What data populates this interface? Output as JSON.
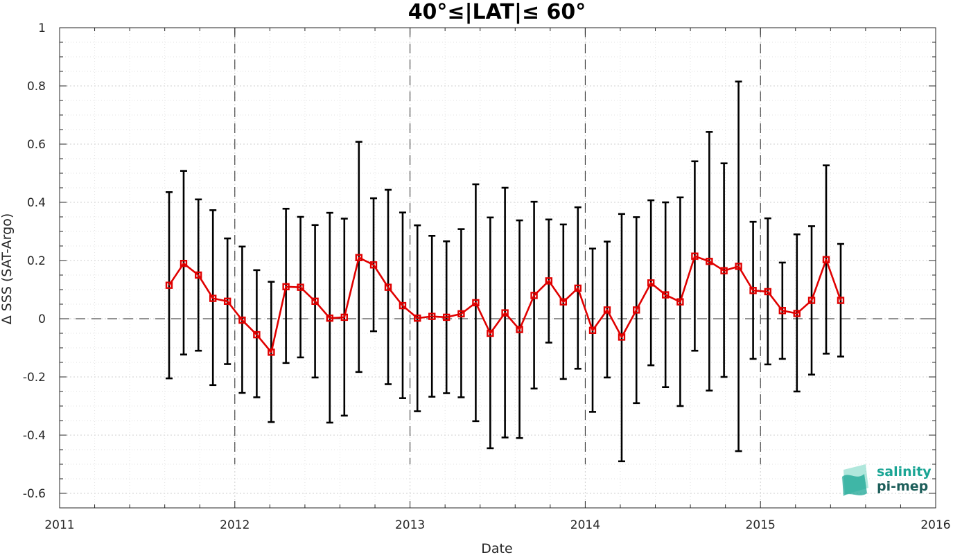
{
  "chart_data": {
    "type": "line",
    "title": "40°≤|LAT|≤ 60°",
    "xlabel": "Date",
    "ylabel": "Δ SSS (SAT-Argo)",
    "xlim": [
      2011,
      2016
    ],
    "ylim": [
      -0.65,
      1.0
    ],
    "xticks": [
      "2011",
      "2012",
      "2013",
      "2014",
      "2015",
      "2016"
    ],
    "yticks": [
      "-0.6",
      "-0.4",
      "-0.2",
      "0",
      "0.2",
      "0.4",
      "0.6",
      "0.8",
      "1"
    ],
    "grid": "dotted major and minor",
    "reference_lines": {
      "horizontal_y": 0,
      "vertical_years": [
        2012,
        2013,
        2014,
        2015
      ]
    },
    "series": [
      {
        "color": "#e00000",
        "marker": "square",
        "x": [
          2011.625,
          2011.708,
          2011.792,
          2011.875,
          2011.958,
          2012.042,
          2012.125,
          2012.208,
          2012.292,
          2012.375,
          2012.458,
          2012.542,
          2012.625,
          2012.708,
          2012.792,
          2012.875,
          2012.958,
          2013.042,
          2013.125,
          2013.208,
          2013.292,
          2013.375,
          2013.458,
          2013.542,
          2013.625,
          2013.708,
          2013.792,
          2013.875,
          2013.958,
          2014.042,
          2014.125,
          2014.208,
          2014.292,
          2014.375,
          2014.458,
          2014.542,
          2014.625,
          2014.708,
          2014.792,
          2014.875,
          2014.958,
          2015.042,
          2015.125,
          2015.208,
          2015.292,
          2015.375,
          2015.458
        ],
        "values": [
          0.115,
          0.19,
          0.15,
          0.07,
          0.06,
          -0.005,
          -0.055,
          -0.115,
          0.11,
          0.108,
          0.06,
          0.002,
          0.005,
          0.21,
          0.185,
          0.108,
          0.045,
          0.002,
          0.008,
          0.005,
          0.017,
          0.055,
          -0.05,
          0.02,
          -0.037,
          0.08,
          0.13,
          0.058,
          0.105,
          -0.04,
          0.03,
          -0.063,
          0.03,
          0.123,
          0.082,
          0.058,
          0.215,
          0.197,
          0.165,
          0.18,
          0.097,
          0.093,
          0.028,
          0.018,
          0.063,
          0.203,
          0.063
        ],
        "upper": [
          0.435,
          0.508,
          0.41,
          0.373,
          0.276,
          0.248,
          0.167,
          0.127,
          0.378,
          0.35,
          0.322,
          0.364,
          0.344,
          0.608,
          0.414,
          0.443,
          0.365,
          0.321,
          0.285,
          0.266,
          0.308,
          0.462,
          0.348,
          0.45,
          0.338,
          0.402,
          0.341,
          0.324,
          0.383,
          0.241,
          0.265,
          0.36,
          0.349,
          0.407,
          0.4,
          0.417,
          0.541,
          0.642,
          0.534,
          0.815,
          0.333,
          0.345,
          0.193,
          0.29,
          0.318,
          0.527,
          0.257
        ],
        "lower": [
          -0.205,
          -0.123,
          -0.11,
          -0.228,
          -0.156,
          -0.255,
          -0.27,
          -0.355,
          -0.152,
          -0.133,
          -0.202,
          -0.357,
          -0.333,
          -0.183,
          -0.043,
          -0.225,
          -0.273,
          -0.318,
          -0.268,
          -0.256,
          -0.27,
          -0.352,
          -0.445,
          -0.408,
          -0.41,
          -0.24,
          -0.082,
          -0.207,
          -0.172,
          -0.32,
          -0.202,
          -0.49,
          -0.29,
          -0.16,
          -0.235,
          -0.3,
          -0.11,
          -0.247,
          -0.2,
          -0.455,
          -0.138,
          -0.157,
          -0.138,
          -0.25,
          -0.192,
          -0.12,
          -0.13
        ]
      }
    ],
    "error_bar_color": "#000000",
    "logo": {
      "line1": "salinity",
      "line2": "pi-mep",
      "color": "#1aa594"
    }
  }
}
